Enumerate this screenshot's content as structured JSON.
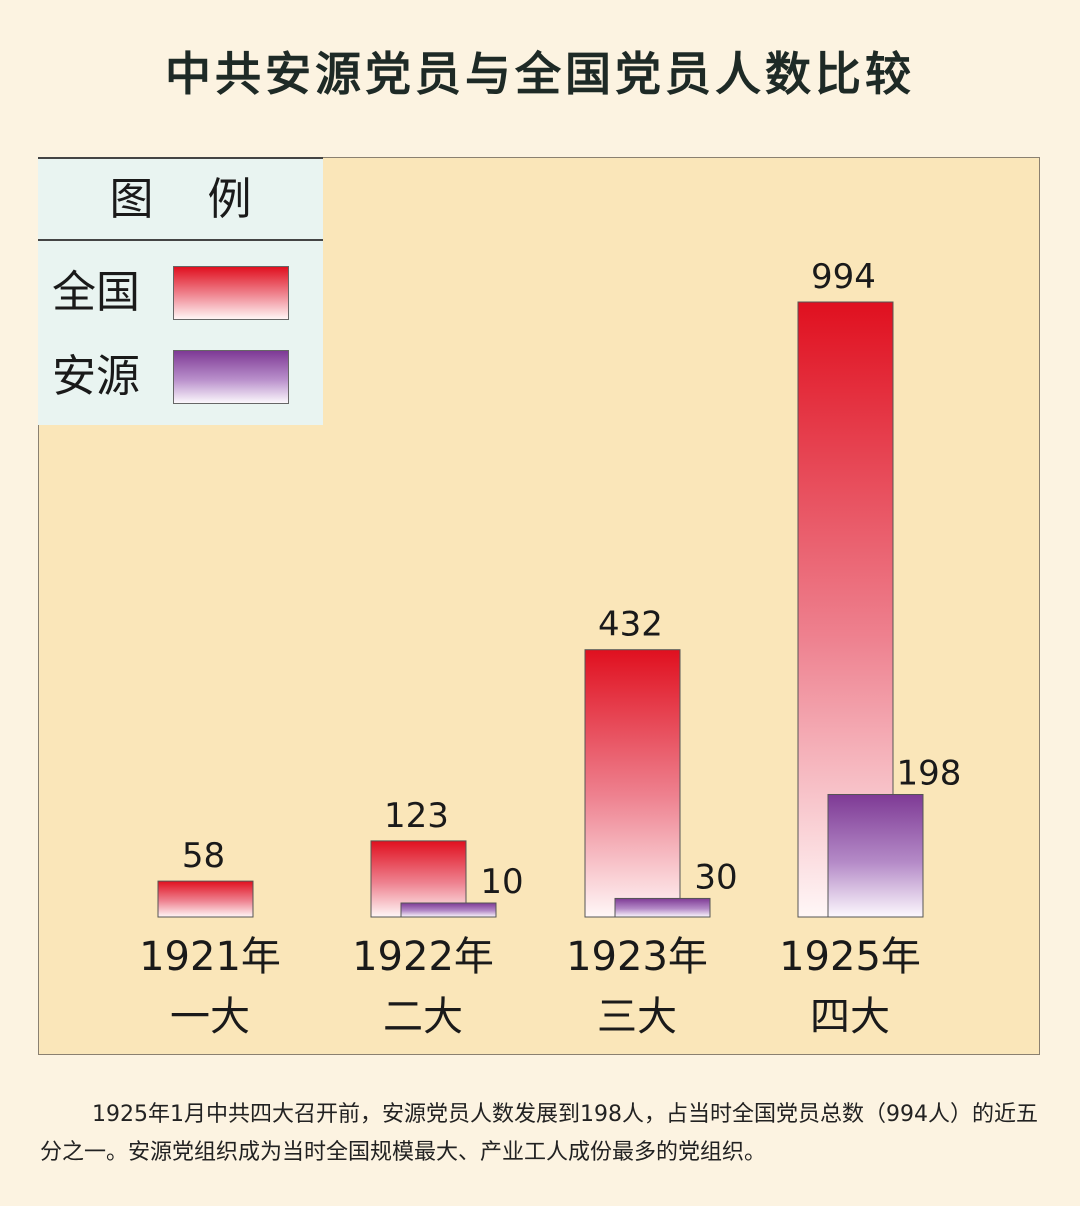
{
  "title": "中共安源党员与全国党员人数比较",
  "legend": {
    "heading": "图例",
    "items": [
      {
        "label": "全国"
      },
      {
        "label": "安源"
      }
    ]
  },
  "colors": {
    "national_top": "#e0101f",
    "anyuan_top": "#7e3a95",
    "panel_bg": "#fae6b9",
    "page_bg": "#fcf3e1"
  },
  "chart_data": {
    "type": "bar",
    "categories": [
      {
        "year": "1921年",
        "congress": "一大"
      },
      {
        "year": "1922年",
        "congress": "二大"
      },
      {
        "year": "1923年",
        "congress": "三大"
      },
      {
        "year": "1925年",
        "congress": "四大"
      }
    ],
    "series": [
      {
        "name": "全国",
        "values": [
          58,
          123,
          432,
          994
        ]
      },
      {
        "name": "安源",
        "values": [
          null,
          10,
          30,
          198
        ]
      }
    ],
    "grid": false,
    "legend_position": "top-left"
  },
  "footnote": "1925年1月中共四大召开前，安源党员人数发展到198人，占当时全国党员总数（994人）的近五分之一。安源党组织成为当时全国规模最大、产业工人成份最多的党组织。"
}
